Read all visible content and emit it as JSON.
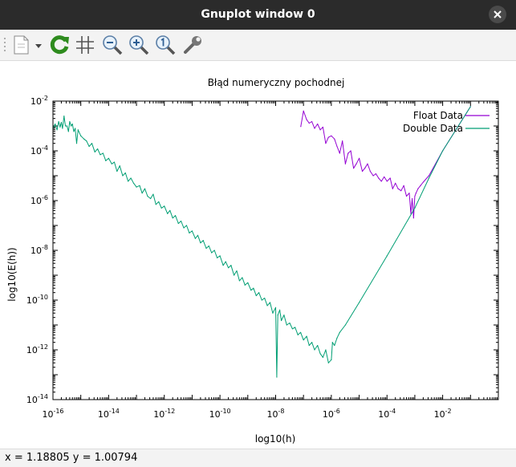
{
  "window": {
    "title": "Gnuplot window 0"
  },
  "toolbar": {
    "items": [
      {
        "name": "export-icon"
      },
      {
        "name": "replot-icon"
      },
      {
        "name": "grid-icon"
      },
      {
        "name": "zoom-out-icon"
      },
      {
        "name": "zoom-in-icon"
      },
      {
        "name": "zoom-reset-icon"
      },
      {
        "name": "settings-icon"
      }
    ]
  },
  "status": {
    "coords": "x = 1.18805 y = 1.00794"
  },
  "colors": {
    "float": "#9400d3",
    "double": "#009e73",
    "titlebar": "#2b2b2b"
  },
  "chart_data": {
    "type": "line",
    "title": "Błąd numeryczny pochodnej",
    "xlabel": "log10(h)",
    "ylabel": "log10(E(h))",
    "log_x": true,
    "log_y": true,
    "xlim": [
      1e-16,
      1
    ],
    "ylim": [
      1e-14,
      0.01
    ],
    "x_ticks": [
      {
        "base": "10",
        "exp": "-16"
      },
      {
        "base": "10",
        "exp": "-14"
      },
      {
        "base": "10",
        "exp": "-12"
      },
      {
        "base": "10",
        "exp": "-10"
      },
      {
        "base": "10",
        "exp": "-8"
      },
      {
        "base": "10",
        "exp": "-6"
      },
      {
        "base": "10",
        "exp": "-4"
      },
      {
        "base": "10",
        "exp": "-2"
      }
    ],
    "y_ticks": [
      {
        "base": "10",
        "exp": "-2"
      },
      {
        "base": "10",
        "exp": "-4"
      },
      {
        "base": "10",
        "exp": "-6"
      },
      {
        "base": "10",
        "exp": "-8"
      },
      {
        "base": "10",
        "exp": "-10"
      },
      {
        "base": "10",
        "exp": "-12"
      },
      {
        "base": "10",
        "exp": "-14"
      }
    ],
    "legend_position": "top-right",
    "series": [
      {
        "name": "Float Data",
        "color": "#9400d3",
        "points": [
          [
            8e-08,
            0.00095
          ],
          [
            1e-07,
            0.004
          ],
          [
            1.3e-07,
            0.0018
          ],
          [
            1.6e-07,
            0.0013
          ],
          [
            2e-07,
            0.0015
          ],
          [
            2.5e-07,
            0.0008
          ],
          [
            3.2e-07,
            0.0012
          ],
          [
            4e-07,
            0.0007
          ],
          [
            5e-07,
            0.0009
          ],
          [
            6.3e-07,
            0.0002
          ],
          [
            7.9e-07,
            0.00035
          ],
          [
            1e-06,
            0.0004
          ],
          [
            1.3e-06,
            0.0003
          ],
          [
            1.6e-06,
            0.00015
          ],
          [
            2e-06,
            8e-05
          ],
          [
            2.5e-06,
            0.00025
          ],
          [
            3.2e-06,
            3e-05
          ],
          [
            4e-06,
            8e-05
          ],
          [
            5e-06,
            0.0001
          ],
          [
            6.3e-06,
            2e-05
          ],
          [
            7.9e-06,
            3e-05
          ],
          [
            1e-05,
            5e-05
          ],
          [
            1.3e-05,
            1.5e-05
          ],
          [
            1.6e-05,
            2e-05
          ],
          [
            2e-05,
            3e-05
          ],
          [
            2.5e-05,
            1.5e-05
          ],
          [
            3.2e-05,
            1e-05
          ],
          [
            4e-05,
            1.2e-05
          ],
          [
            5e-05,
            8e-06
          ],
          [
            6.3e-05,
            6e-06
          ],
          [
            7.9e-05,
            9e-06
          ],
          [
            0.0001,
            6e-06
          ],
          [
            0.00013,
            8e-06
          ],
          [
            0.00016,
            3e-06
          ],
          [
            0.0002,
            5e-06
          ],
          [
            0.00025,
            3e-06
          ],
          [
            0.00032,
            2.5e-06
          ],
          [
            0.0004,
            4e-06
          ],
          [
            0.0005,
            1.5e-06
          ],
          [
            0.00063,
            2e-06
          ],
          [
            0.00072,
            3e-07
          ],
          [
            0.0008,
            1.2e-06
          ],
          [
            0.0009,
            2e-07
          ],
          [
            0.001,
            1.5e-06
          ],
          [
            0.0011,
            2e-06
          ],
          [
            0.0013,
            3e-06
          ],
          [
            0.0016,
            4e-06
          ],
          [
            0.002,
            5.5e-06
          ],
          [
            0.0032,
            1e-05
          ],
          [
            0.01,
            0.0001
          ],
          [
            0.1,
            0.006
          ]
        ]
      },
      {
        "name": "Double Data",
        "color": "#009e73",
        "points": [
          [
            1e-16,
            0.0008
          ],
          [
            1.2e-16,
            0.0012
          ],
          [
            1.4e-16,
            0.0007
          ],
          [
            1.6e-16,
            0.0015
          ],
          [
            1.8e-16,
            0.0009
          ],
          [
            2e-16,
            0.0014
          ],
          [
            2.2e-16,
            0.0008
          ],
          [
            2.5e-16,
            0.0025
          ],
          [
            2.8e-16,
            0.001
          ],
          [
            3.2e-16,
            0.001
          ],
          [
            3.6e-16,
            0.0006
          ],
          [
            4e-16,
            0.0015
          ],
          [
            4.5e-16,
            0.001
          ],
          [
            5e-16,
            0.0012
          ],
          [
            5.6e-16,
            0.0006
          ],
          [
            6.3e-16,
            0.0008
          ],
          [
            7.1e-16,
            0.0002
          ],
          [
            8e-16,
            0.0007
          ],
          [
            1e-15,
            0.0004
          ],
          [
            1.3e-15,
            0.0003
          ],
          [
            1.6e-15,
            0.00025
          ],
          [
            2e-15,
            0.00015
          ],
          [
            2.5e-15,
            0.0002
          ],
          [
            3.2e-15,
            9e-05
          ],
          [
            4e-15,
            0.00012
          ],
          [
            5e-15,
            7e-05
          ],
          [
            6.3e-15,
            8e-05
          ],
          [
            7.9e-15,
            4e-05
          ],
          [
            1e-14,
            5e-05
          ],
          [
            1.3e-14,
            3e-05
          ],
          [
            1.6e-14,
            3.5e-05
          ],
          [
            2e-14,
            1.5e-05
          ],
          [
            2.5e-14,
            2.5e-05
          ],
          [
            3.2e-14,
            1e-05
          ],
          [
            4e-14,
            1.3e-05
          ],
          [
            5e-14,
            6e-06
          ],
          [
            6.3e-14,
            8e-06
          ],
          [
            7.9e-14,
            5e-06
          ],
          [
            1e-13,
            3.5e-06
          ],
          [
            1.3e-13,
            4e-06
          ],
          [
            1.6e-13,
            2e-06
          ],
          [
            2e-13,
            3e-06
          ],
          [
            2.5e-13,
            1.5e-06
          ],
          [
            3.2e-13,
            1.2e-06
          ],
          [
            4e-13,
            1.8e-06
          ],
          [
            5e-13,
            7e-07
          ],
          [
            6.3e-13,
            9e-07
          ],
          [
            7.9e-13,
            5e-07
          ],
          [
            1e-12,
            6e-07
          ],
          [
            1.3e-12,
            3e-07
          ],
          [
            1.6e-12,
            4e-07
          ],
          [
            2e-12,
            2e-07
          ],
          [
            2.5e-12,
            2.5e-07
          ],
          [
            3.2e-12,
            1.2e-07
          ],
          [
            4e-12,
            1.5e-07
          ],
          [
            5e-12,
            8e-08
          ],
          [
            6.3e-12,
            1e-07
          ],
          [
            7.9e-12,
            5e-08
          ],
          [
            1e-11,
            6e-08
          ],
          [
            1.3e-11,
            3e-08
          ],
          [
            1.6e-11,
            4e-08
          ],
          [
            2e-11,
            2e-08
          ],
          [
            2.5e-11,
            2.5e-08
          ],
          [
            3.2e-11,
            1.2e-08
          ],
          [
            4e-11,
            1.5e-08
          ],
          [
            5e-11,
            8e-09
          ],
          [
            6.3e-11,
            1e-08
          ],
          [
            7.9e-11,
            5e-09
          ],
          [
            1e-10,
            6e-09
          ],
          [
            1.3e-10,
            2.5e-09
          ],
          [
            1.6e-10,
            3.5e-09
          ],
          [
            2e-10,
            2e-09
          ],
          [
            2.5e-10,
            2.5e-09
          ],
          [
            3.2e-10,
            1e-09
          ],
          [
            4e-10,
            1.5e-09
          ],
          [
            5e-10,
            6e-10
          ],
          [
            6.3e-10,
            8e-10
          ],
          [
            7.9e-10,
            4e-10
          ],
          [
            1e-09,
            5e-10
          ],
          [
            1.3e-09,
            2.5e-10
          ],
          [
            1.6e-09,
            3e-10
          ],
          [
            2e-09,
            1.5e-10
          ],
          [
            2.5e-09,
            2e-10
          ],
          [
            3.2e-09,
            1e-10
          ],
          [
            4e-09,
            1.2e-10
          ],
          [
            5e-09,
            6e-11
          ],
          [
            6.3e-09,
            8e-11
          ],
          [
            7.9e-09,
            3e-11
          ],
          [
            1e-08,
            5e-11
          ],
          [
            1.1e-08,
            8e-14
          ],
          [
            1.2e-08,
            2.5e-11
          ],
          [
            1.4e-08,
            4e-11
          ],
          [
            1.6e-08,
            1.5e-11
          ],
          [
            2e-08,
            2.5e-11
          ],
          [
            2.5e-08,
            1e-11
          ],
          [
            3.2e-08,
            1.2e-11
          ],
          [
            4e-08,
            7e-12
          ],
          [
            5e-08,
            8e-12
          ],
          [
            6.3e-08,
            4e-12
          ],
          [
            7.9e-08,
            5e-12
          ],
          [
            1e-07,
            2.5e-12
          ],
          [
            1.3e-07,
            3.5e-12
          ],
          [
            1.6e-07,
            1.5e-12
          ],
          [
            2e-07,
            2e-12
          ],
          [
            2.5e-07,
            1e-12
          ],
          [
            3.2e-07,
            1.5e-12
          ],
          [
            4e-07,
            7e-13
          ],
          [
            5e-07,
            5e-13
          ],
          [
            6.3e-07,
            1e-12
          ],
          [
            7.9e-07,
            3e-13
          ],
          [
            1e-06,
            4e-13
          ],
          [
            1.1e-06,
            2e-12
          ],
          [
            1.3e-06,
            1.5e-12
          ],
          [
            1.6e-06,
            3e-12
          ],
          [
            2e-06,
            5e-12
          ],
          [
            3.2e-06,
            1e-11
          ],
          [
            1e-05,
            8e-11
          ],
          [
            0.0001,
            6e-09
          ],
          [
            0.001,
            5e-07
          ],
          [
            0.0032,
            8e-06
          ],
          [
            0.01,
            0.0001
          ],
          [
            0.1,
            0.006
          ]
        ]
      }
    ]
  }
}
